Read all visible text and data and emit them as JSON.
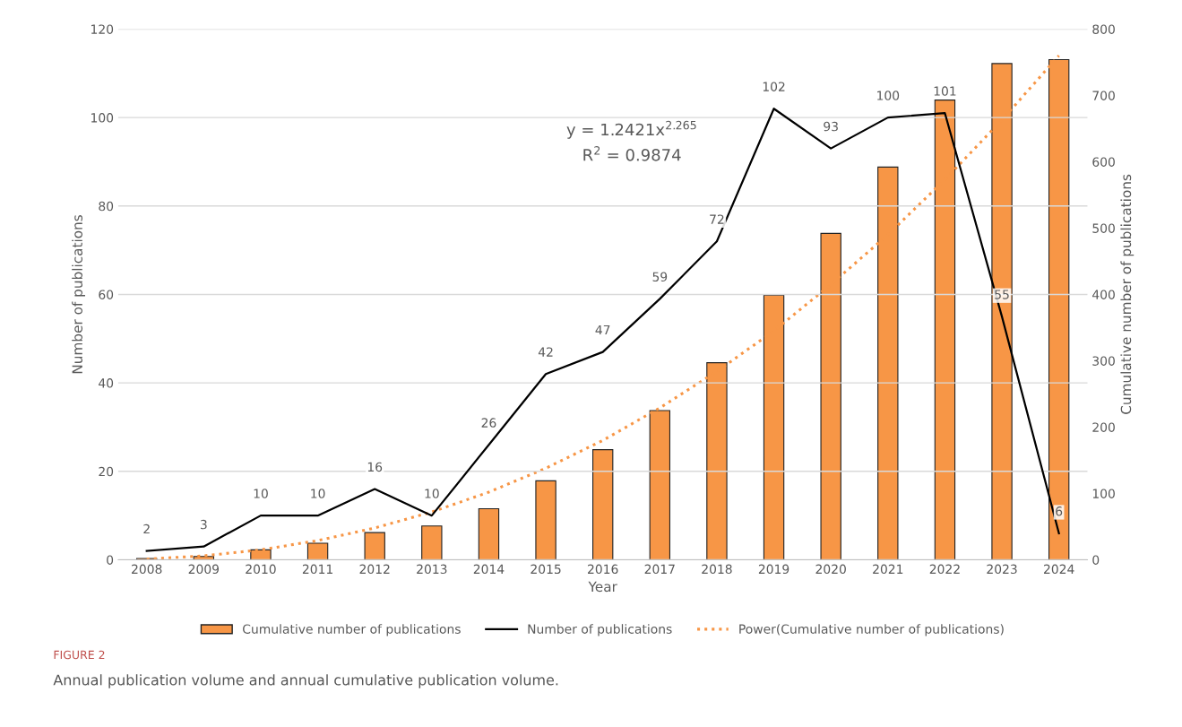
{
  "chart_data": {
    "type": "bar",
    "xlabel": "Year",
    "ylabel": "Number of publications",
    "y2label": "Cumulative number of publications",
    "categories": [
      "2008",
      "2009",
      "2010",
      "2011",
      "2012",
      "2013",
      "2014",
      "2015",
      "2016",
      "2017",
      "2018",
      "2019",
      "2020",
      "2021",
      "2022",
      "2023",
      "2024"
    ],
    "series": [
      {
        "name": "Cumulative number of publications",
        "axis": "y2",
        "color": "#f79646",
        "values": [
          2,
          5,
          15,
          25,
          41,
          51,
          77,
          119,
          166,
          225,
          297,
          399,
          492,
          592,
          693,
          748,
          754
        ]
      },
      {
        "name": "Number of publications",
        "type": "line",
        "axis": "y",
        "color": "#000000",
        "values": [
          2,
          3,
          10,
          10,
          16,
          10,
          26,
          42,
          47,
          59,
          72,
          102,
          93,
          100,
          101,
          55,
          6
        ],
        "value_labels": [
          "2",
          "3",
          "10",
          "10",
          "16",
          "10",
          "26",
          "42",
          "47",
          "59",
          "72",
          "102",
          "93",
          "100",
          "101",
          "55",
          "6"
        ]
      },
      {
        "name": "Power(Cumulative number of publications)",
        "type": "line",
        "axis": "y2",
        "color": "#f79646",
        "line_style": "dotted",
        "values": [
          1,
          6,
          15,
          29,
          48,
          72,
          102,
          138,
          180,
          229,
          284,
          345,
          415,
          490,
          573,
          663,
          760
        ]
      }
    ],
    "ylim": [
      0,
      120
    ],
    "yticks": [
      0,
      20,
      40,
      60,
      80,
      100,
      120
    ],
    "y2lim": [
      0,
      800
    ],
    "y2ticks": [
      0,
      100,
      200,
      300,
      400,
      500,
      600,
      700,
      800
    ],
    "grid": "y",
    "legend": "bottom",
    "marker": "none",
    "annotations": [
      "y = 1.2421x$^{2.265}$",
      "R$^{2}$ = 0.9874",
      "FIGURE 2",
      "Annual publication volume and annual cumulative publication volume."
    ]
  }
}
